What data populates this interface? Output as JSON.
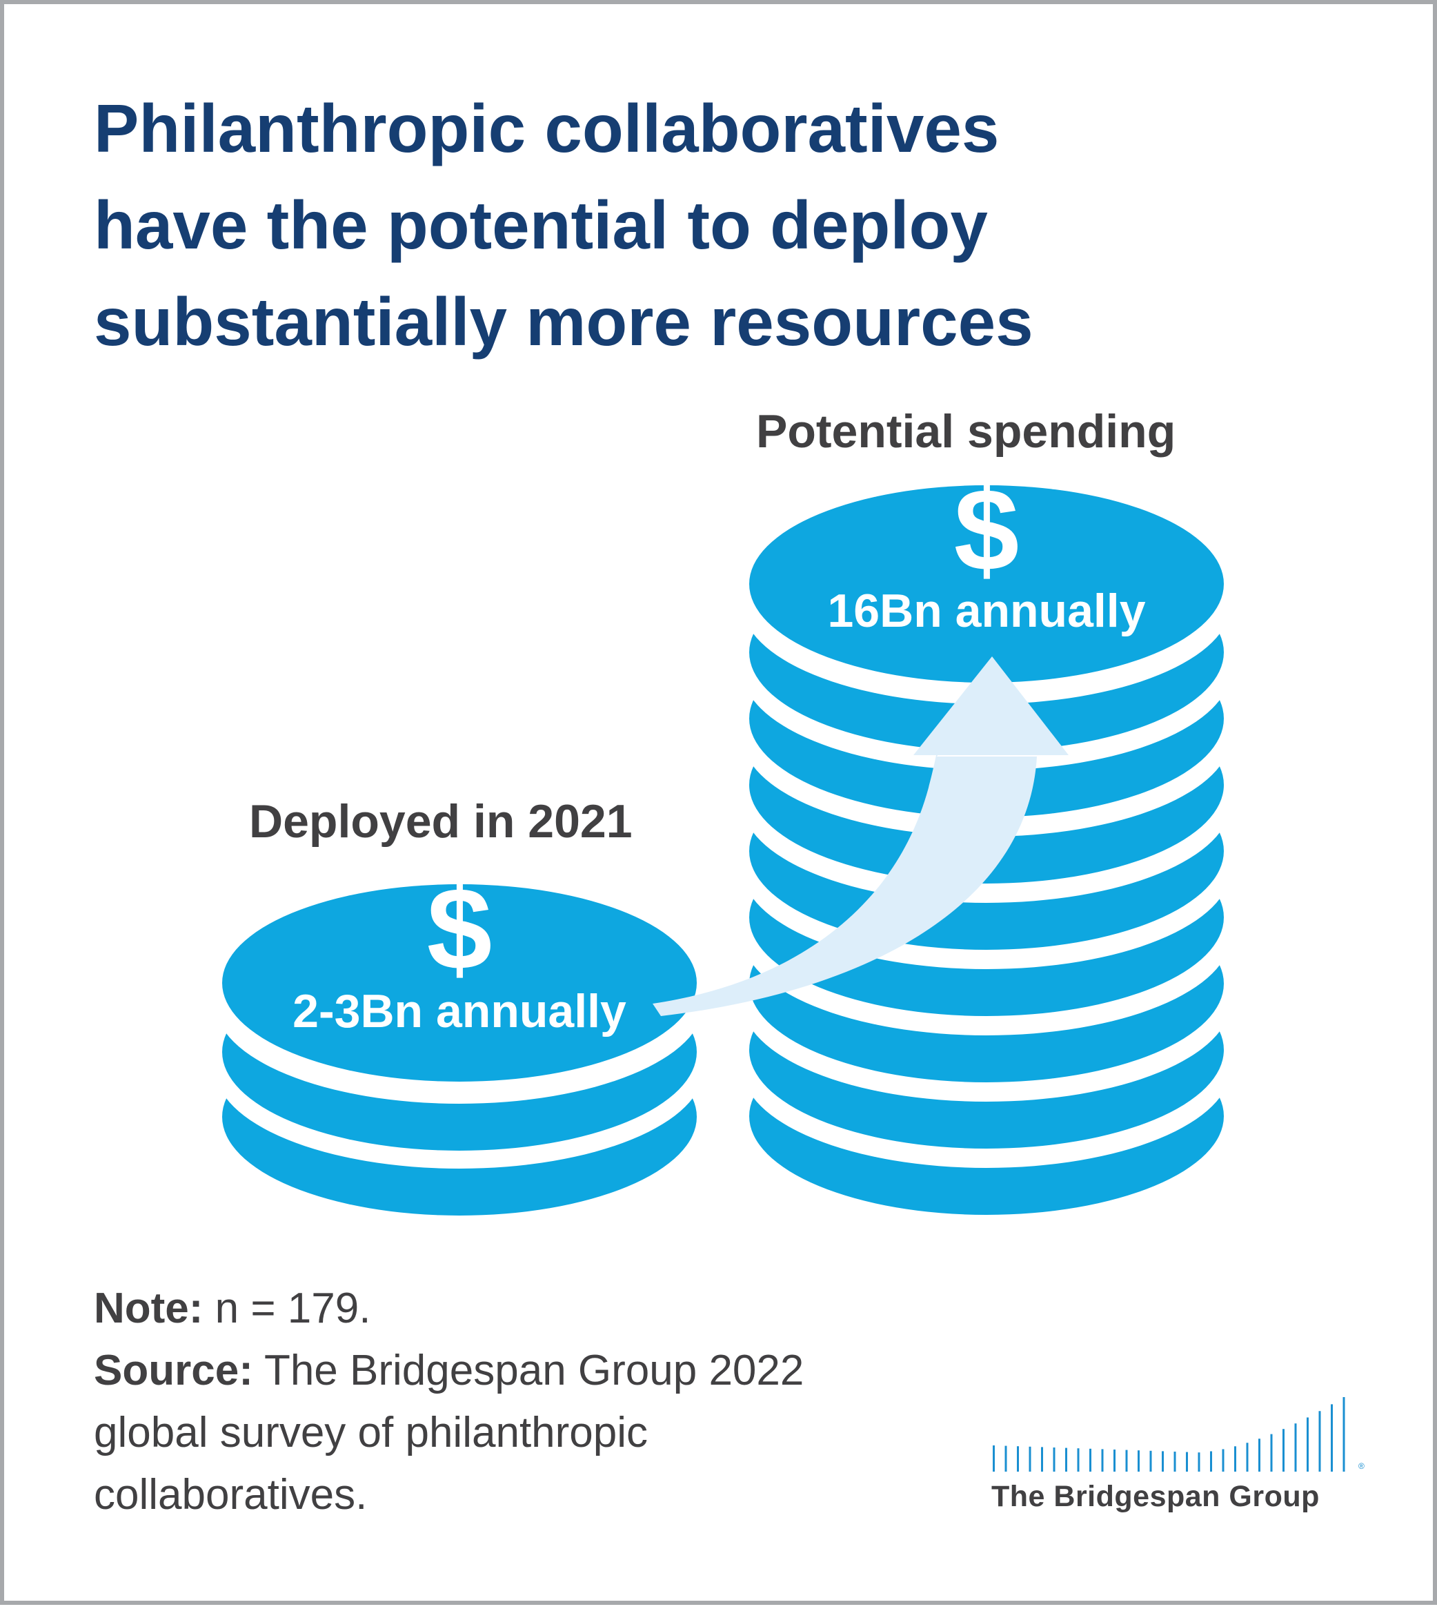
{
  "title": {
    "lines": [
      "Philanthropic collaboratives",
      "have the potential to deploy",
      "substantially more resources"
    ]
  },
  "stacks": {
    "deployed": {
      "label": "Deployed in 2021",
      "symbol": "$",
      "amount": "2-3Bn annually"
    },
    "potential": {
      "label": "Potential spending",
      "symbol": "$",
      "amount": "16Bn annually"
    }
  },
  "notes": {
    "note_label": "Note:",
    "note_text": "n = 179.",
    "source_label": "Source:",
    "source_line1": "The Bridgespan Group 2022",
    "source_line2": "global survey of philanthropic",
    "source_line3": "collaboratives."
  },
  "logo": {
    "name": "The Bridgespan Group",
    "mark": "®"
  },
  "colors": {
    "title": "#163e72",
    "coin": "#0ea7e0",
    "arrow": "#ddeefa",
    "text_dark": "#414042",
    "border": "#a7a9ac"
  }
}
